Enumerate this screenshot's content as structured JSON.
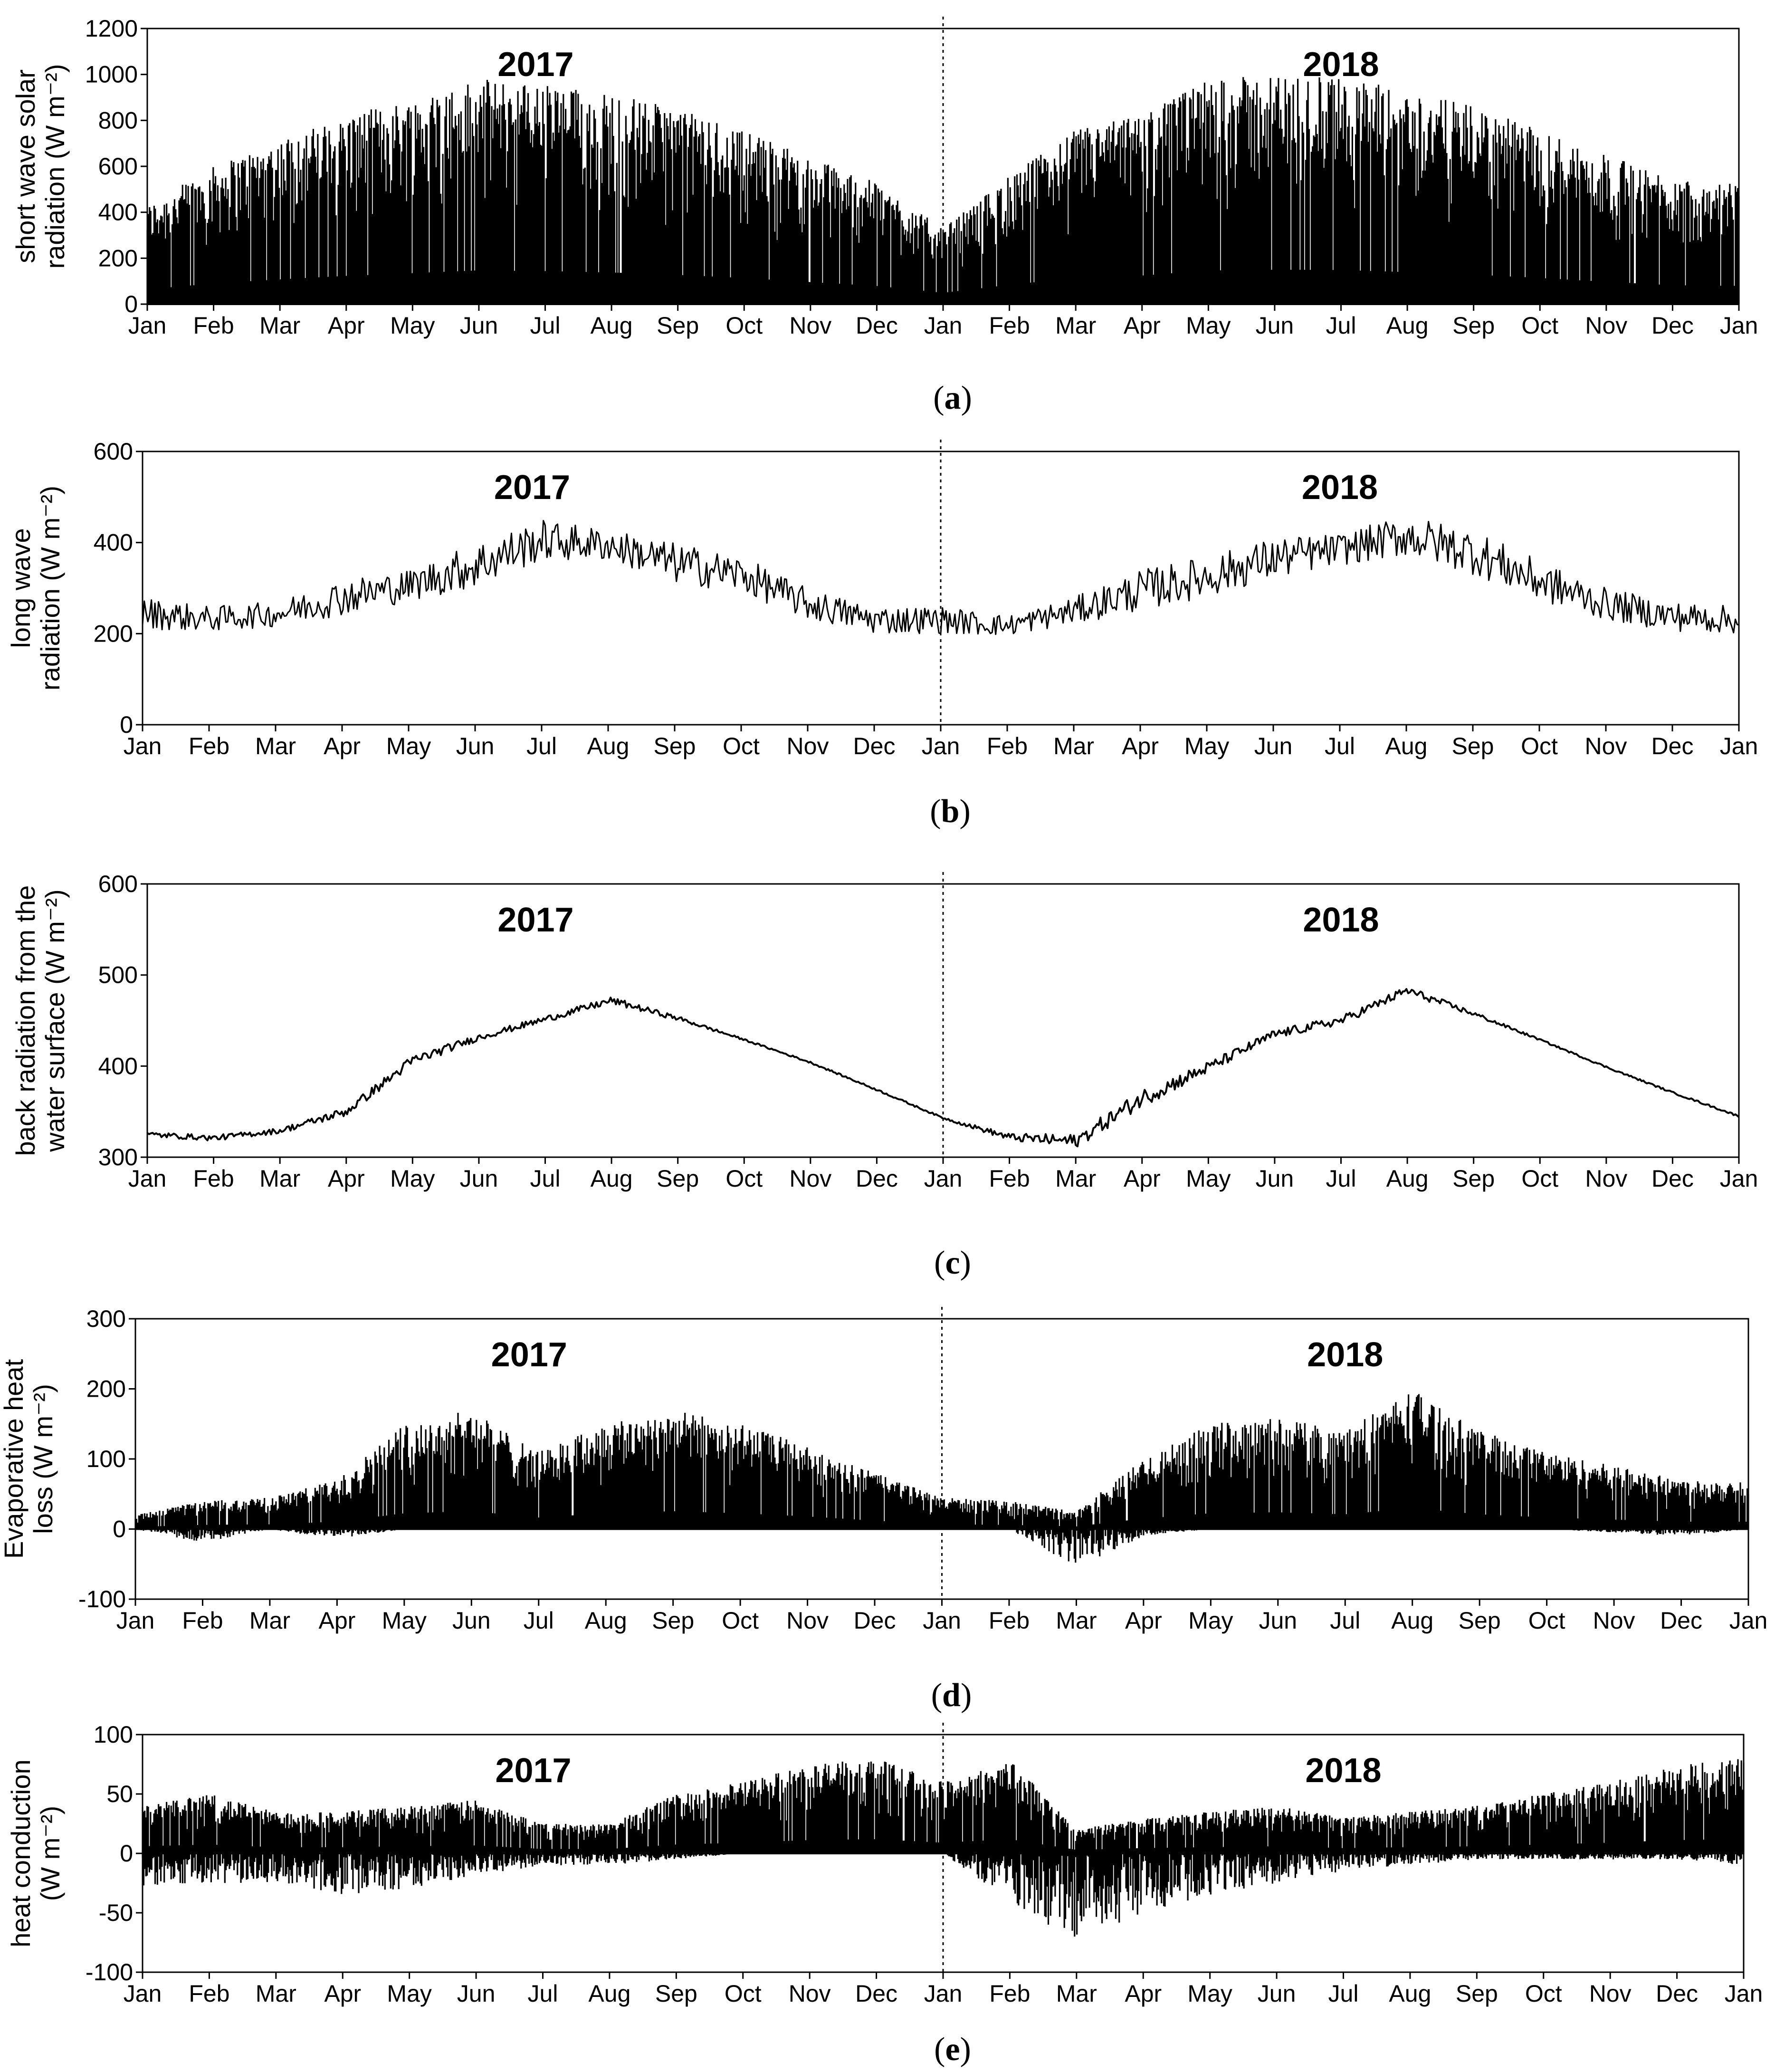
{
  "chart_data": [
    {
      "type": "bar",
      "caption": "a",
      "ylabel": [
        "short wave solar",
        "radiation (W m⁻²)"
      ],
      "ylim": [
        0,
        1200
      ],
      "yticks": [
        0,
        200,
        400,
        600,
        800,
        1000,
        1200
      ],
      "grid": false,
      "xlabels": [
        "Jan",
        "Feb",
        "Mar",
        "Apr",
        "May",
        "Jun",
        "Jul",
        "Aug",
        "Sep",
        "Oct",
        "Nov",
        "Dec",
        "Jan",
        "Feb",
        "Mar",
        "Apr",
        "May",
        "Jun",
        "Jul",
        "Aug",
        "Sep",
        "Oct",
        "Nov",
        "Dec",
        "Jan"
      ],
      "year_labels": [
        {
          "text": "2017",
          "month": 6
        },
        {
          "text": "2018",
          "month": 18
        }
      ],
      "divider_month": 12,
      "series": [
        {
          "x": [
            0,
            1,
            2,
            3,
            4,
            5,
            6,
            7,
            8,
            9,
            10,
            11,
            12,
            13,
            14,
            15,
            16,
            17,
            18,
            19,
            20,
            21,
            22,
            23,
            24
          ],
          "upper": [
            430,
            600,
            720,
            820,
            900,
            980,
            960,
            920,
            850,
            760,
            640,
            530,
            330,
            560,
            760,
            830,
            980,
            1000,
            990,
            930,
            860,
            760,
            650,
            550,
            530
          ],
          "lower": [
            0,
            0,
            0,
            0,
            0,
            0,
            0,
            0,
            0,
            0,
            0,
            0,
            0,
            0,
            0,
            0,
            0,
            0,
            0,
            0,
            0,
            0,
            0,
            0,
            0
          ]
        }
      ]
    },
    {
      "type": "area",
      "caption": "b",
      "ylabel": [
        "long wave",
        "radiation (W m⁻²)"
      ],
      "ylim": [
        0,
        600
      ],
      "yticks": [
        0,
        200,
        400,
        600
      ],
      "grid": false,
      "xlabels": [
        "Jan",
        "Feb",
        "Mar",
        "Apr",
        "May",
        "Jun",
        "Jul",
        "Aug",
        "Sep",
        "Oct",
        "Nov",
        "Dec",
        "Jan",
        "Feb",
        "Mar",
        "Apr",
        "May",
        "Jun",
        "Jul",
        "Aug",
        "Sep",
        "Oct",
        "Nov",
        "Dec",
        "Jan"
      ],
      "year_labels": [
        {
          "text": "2017",
          "month": 6
        },
        {
          "text": "2018",
          "month": 18
        }
      ],
      "divider_month": 12,
      "series": [
        {
          "x": [
            0,
            1,
            2,
            3,
            4,
            5,
            6,
            7,
            8,
            9,
            10,
            11,
            12,
            13,
            14,
            15,
            16,
            17,
            18,
            19,
            20,
            21,
            22,
            23,
            24
          ],
          "upper": [
            280,
            260,
            270,
            320,
            340,
            400,
            450,
            430,
            400,
            370,
            300,
            260,
            260,
            240,
            280,
            340,
            370,
            410,
            420,
            460,
            430,
            360,
            300,
            270,
            260
          ],
          "lower": [
            210,
            205,
            215,
            240,
            270,
            300,
            360,
            360,
            310,
            290,
            230,
            200,
            200,
            195,
            220,
            250,
            280,
            320,
            350,
            370,
            330,
            270,
            230,
            205,
            200
          ]
        }
      ]
    },
    {
      "type": "area",
      "caption": "c",
      "ylabel": [
        "back radiation from the",
        "water surface (W m⁻²)"
      ],
      "ylim": [
        300,
        600
      ],
      "yticks": [
        300,
        400,
        500,
        600
      ],
      "grid": false,
      "xlabels": [
        "Jan",
        "Feb",
        "Mar",
        "Apr",
        "May",
        "Jun",
        "Jul",
        "Aug",
        "Sep",
        "Oct",
        "Nov",
        "Dec",
        "Jan",
        "Feb",
        "Mar",
        "Apr",
        "May",
        "Jun",
        "Jul",
        "Aug",
        "Sep",
        "Oct",
        "Nov",
        "Dec",
        "Jan"
      ],
      "year_labels": [
        {
          "text": "2017",
          "month": 6
        },
        {
          "text": "2018",
          "month": 18
        }
      ],
      "divider_month": 12,
      "series": [
        {
          "x": [
            0,
            1,
            2,
            3,
            4,
            5,
            6,
            7,
            8,
            9,
            10,
            11,
            12,
            13,
            14,
            15,
            16,
            17,
            18,
            19,
            20,
            21,
            22,
            23,
            24
          ],
          "upper": [
            328,
            324,
            332,
            355,
            412,
            435,
            455,
            476,
            455,
            430,
            405,
            375,
            344,
            326,
            325,
            375,
            405,
            440,
            455,
            488,
            460,
            430,
            400,
            372,
            346
          ],
          "lower": [
            322,
            318,
            326,
            345,
            400,
            428,
            448,
            468,
            450,
            428,
            403,
            373,
            342,
            318,
            310,
            355,
            392,
            430,
            445,
            478,
            455,
            428,
            398,
            370,
            344
          ]
        }
      ]
    },
    {
      "type": "bar",
      "caption": "d",
      "ylabel": [
        "Evaporative heat",
        "loss (W m⁻²)"
      ],
      "ylim": [
        -100,
        300
      ],
      "yticks": [
        -100,
        0,
        100,
        200,
        300
      ],
      "grid": false,
      "xlabels": [
        "Jan",
        "Feb",
        "Mar",
        "Apr",
        "May",
        "Jun",
        "Jul",
        "Aug",
        "Sep",
        "Oct",
        "Nov",
        "Dec",
        "Jan",
        "Feb",
        "Mar",
        "Apr",
        "May",
        "Jun",
        "Jul",
        "Aug",
        "Sep",
        "Oct",
        "Nov",
        "Dec",
        "Jan"
      ],
      "year_labels": [
        {
          "text": "2017",
          "month": 6
        },
        {
          "text": "2018",
          "month": 18
        }
      ],
      "divider_month": 12,
      "series": [
        {
          "x": [
            0,
            1,
            2,
            3,
            4,
            5,
            6,
            7,
            8,
            9,
            10,
            11,
            12,
            13,
            14,
            15,
            16,
            17,
            18,
            19,
            20,
            21,
            22,
            23,
            24
          ],
          "upper": [
            20,
            40,
            45,
            70,
            150,
            170,
            110,
            150,
            170,
            150,
            120,
            80,
            45,
            40,
            25,
            100,
            150,
            160,
            140,
            200,
            140,
            110,
            90,
            70,
            70
          ],
          "lower": [
            0,
            -20,
            0,
            -15,
            0,
            0,
            0,
            0,
            0,
            0,
            0,
            0,
            0,
            0,
            -55,
            -10,
            0,
            0,
            0,
            0,
            0,
            0,
            -5,
            -10,
            0
          ]
        }
      ]
    },
    {
      "type": "bar",
      "caption": "e",
      "ylabel": [
        "heat conduction",
        "(W m⁻²)"
      ],
      "ylim": [
        -100,
        100
      ],
      "yticks": [
        -100,
        -50,
        0,
        50,
        100
      ],
      "grid": false,
      "xlabels": [
        "Jan",
        "Feb",
        "Mar",
        "Apr",
        "May",
        "Jun",
        "Jul",
        "Aug",
        "Sep",
        "Oct",
        "Nov",
        "Dec",
        "Jan",
        "Feb",
        "Mar",
        "Apr",
        "May",
        "Jun",
        "Jul",
        "Aug",
        "Sep",
        "Oct",
        "Nov",
        "Dec",
        "Jan"
      ],
      "year_labels": [
        {
          "text": "2017",
          "month": 6
        },
        {
          "text": "2018",
          "month": 18
        }
      ],
      "divider_month": 12,
      "series": [
        {
          "x": [
            0,
            1,
            2,
            3,
            4,
            5,
            6,
            7,
            8,
            9,
            10,
            11,
            12,
            13,
            14,
            15,
            16,
            17,
            18,
            19,
            20,
            21,
            22,
            23,
            24
          ],
          "upper": [
            40,
            50,
            35,
            35,
            40,
            45,
            25,
            25,
            50,
            60,
            75,
            80,
            60,
            80,
            20,
            30,
            35,
            40,
            30,
            35,
            40,
            50,
            60,
            75,
            80
          ],
          "lower": [
            -30,
            -25,
            -25,
            -35,
            -30,
            -20,
            -10,
            -10,
            -5,
            0,
            0,
            0,
            0,
            -40,
            -75,
            -50,
            -35,
            -25,
            -15,
            -10,
            -5,
            -5,
            -5,
            -5,
            -10
          ]
        }
      ]
    }
  ]
}
